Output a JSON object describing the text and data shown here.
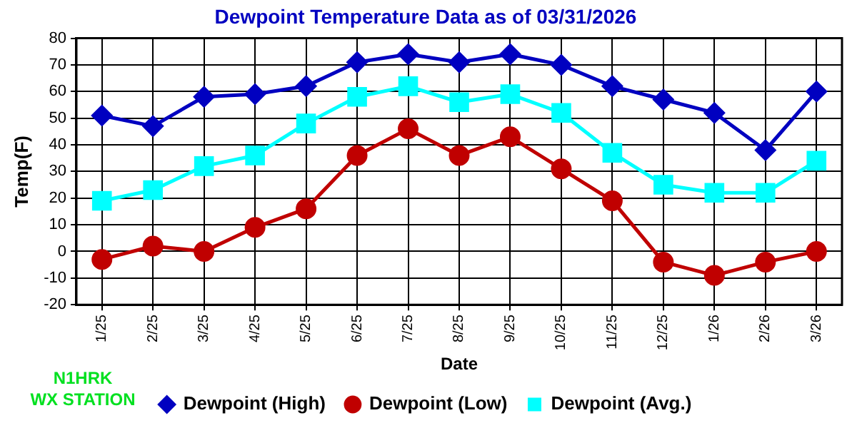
{
  "chart_data": {
    "type": "line",
    "title": "Dewpoint Temperature Data as of 03/31/2026",
    "xlabel": "Date",
    "ylabel": "Temp(F)",
    "categories": [
      "1/25",
      "2/25",
      "3/25",
      "4/25",
      "5/25",
      "6/25",
      "7/25",
      "8/25",
      "9/25",
      "10/25",
      "11/25",
      "12/25",
      "1/26",
      "2/26",
      "3/26"
    ],
    "series": [
      {
        "name": "Dewpoint (High)",
        "color": "#0000c0",
        "marker": "diamond",
        "values": [
          51,
          47,
          58,
          59,
          62,
          71,
          74,
          71,
          74,
          70,
          62,
          57,
          52,
          38,
          60
        ]
      },
      {
        "name": "Dewpoint (Low)",
        "color": "#c00000",
        "marker": "circle",
        "values": [
          -3,
          2,
          0,
          9,
          16,
          36,
          46,
          36,
          43,
          31,
          19,
          -4,
          -9,
          -4,
          0
        ]
      },
      {
        "name": "Dewpoint (Avg.)",
        "color": "#00ffff",
        "marker": "square",
        "values": [
          19,
          23,
          32,
          36,
          48,
          58,
          62,
          56,
          59,
          52,
          37,
          25,
          22,
          22,
          34
        ]
      }
    ],
    "ylim": [
      -20,
      80
    ],
    "yticks": [
      -20,
      -10,
      0,
      10,
      20,
      30,
      40,
      50,
      60,
      70,
      80
    ],
    "grid": true,
    "legend": "bottom",
    "annotations": [
      "N1HRK\nWX STATION"
    ]
  }
}
